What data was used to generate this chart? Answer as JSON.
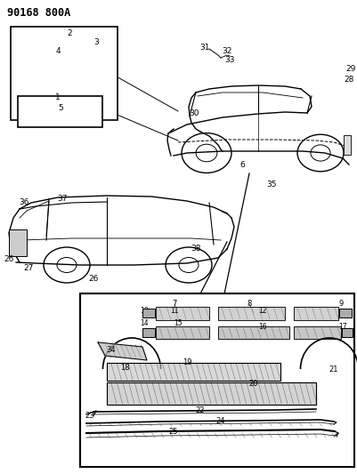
{
  "title": "90168 800A",
  "bg_color": "#ffffff",
  "line_color": "#000000",
  "fig_width": 4.01,
  "fig_height": 5.33,
  "dpi": 100,
  "title_fontsize": 8.5,
  "label_fontsize": 6.0
}
